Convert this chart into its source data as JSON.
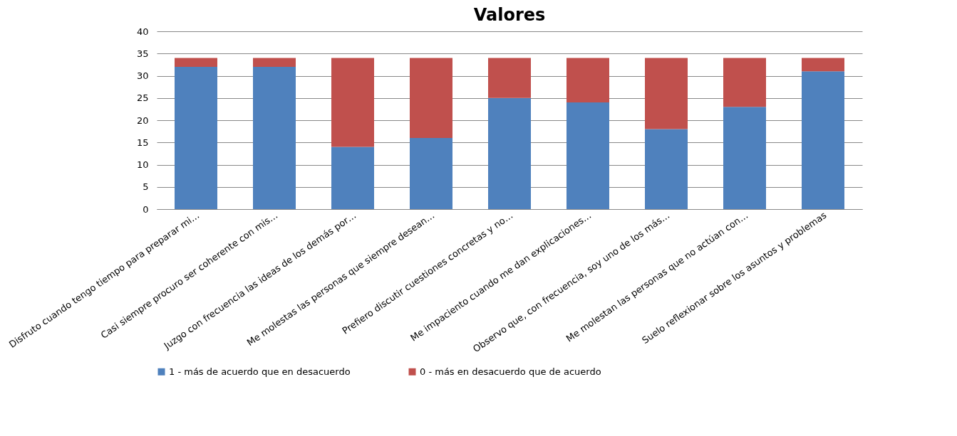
{
  "chart_data": {
    "type": "bar",
    "title": "Valores",
    "stacked": true,
    "categories": [
      "Disfruto cuando tengo tiempo para preparar mi…",
      "Casi siempre procuro ser coherente con mis…",
      "Juzgo con frecuencia las ideas de los demás por…",
      "Me molestas las personas que siempre desean…",
      "Prefiero discutir cuestiones concretas y no…",
      "Me impaciento cuando me dan explicaciones…",
      "Observo que, con frecuencia, soy uno de los más…",
      "Me molestan las personas que no actúan con…",
      "Suelo reflexionar sobre los asuntos y problemas"
    ],
    "series": [
      {
        "name": "1 - más de acuerdo que en desacuerdo",
        "color": "#4f81bd",
        "values": [
          32,
          32,
          14,
          16,
          25,
          24,
          18,
          23,
          31
        ]
      },
      {
        "name": "0 - más en desacuerdo que de acuerdo",
        "color": "#c0504d",
        "values": [
          2,
          2,
          20,
          18,
          9,
          10,
          16,
          11,
          3
        ]
      }
    ],
    "ylim": [
      0,
      40
    ],
    "yticks": [
      0,
      5,
      10,
      15,
      20,
      25,
      30,
      35,
      40
    ],
    "grid": "y",
    "legend": "bottom"
  }
}
